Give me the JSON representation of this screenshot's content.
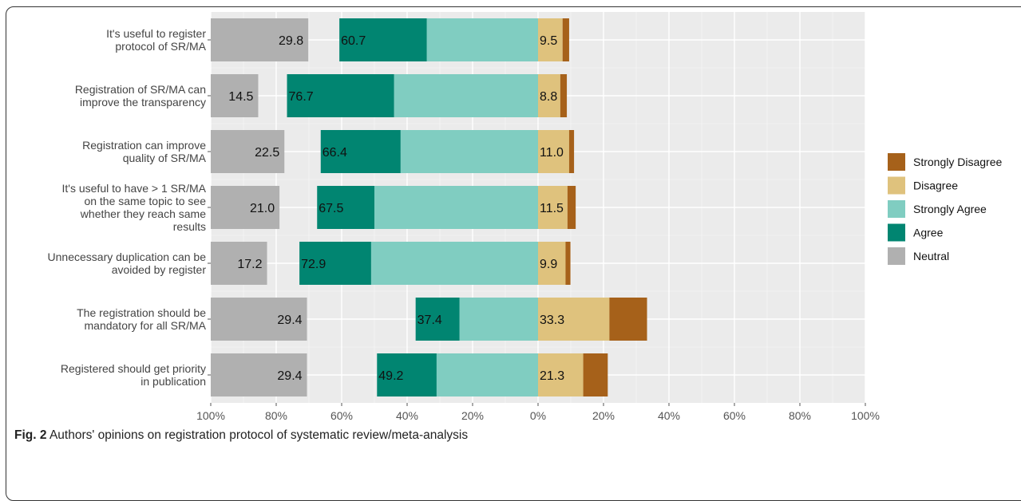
{
  "chart_data": {
    "type": "bar",
    "stacking": "diverging",
    "categories": [
      "It's useful to register protocol of SR/MA",
      "Registration of SR/MA can improve the transparency",
      "Registration can improve quality of SR/MA",
      "It's useful to have > 1 SR/MA on the same topic to see whether they reach same results",
      "Unnecessary duplication can be avoided by register",
      "The registration should be mandatory for all SR/MA",
      "Registered should get priority in publication"
    ],
    "category_lines": [
      [
        "It's useful to register",
        "protocol of SR/MA"
      ],
      [
        "Registration of SR/MA can",
        "improve the transparency"
      ],
      [
        "Registration can improve",
        "quality of SR/MA"
      ],
      [
        "It's useful to have > 1 SR/MA",
        "on the same topic to see",
        "whether they reach same",
        "results"
      ],
      [
        "Unnecessary duplication can be",
        "avoided by register"
      ],
      [
        "The registration should be",
        "mandatory for all SR/MA"
      ],
      [
        "Registered should get priority",
        "in publication"
      ]
    ],
    "series": [
      {
        "name": "Strongly Disagree",
        "color": "#A6611A",
        "values": [
          2.0,
          2.0,
          1.5,
          2.5,
          1.5,
          11.5,
          7.5
        ]
      },
      {
        "name": "Disagree",
        "color": "#DFC27D",
        "values": [
          7.5,
          6.8,
          9.5,
          9.0,
          8.4,
          21.8,
          13.8
        ]
      },
      {
        "name": "Strongly Agree",
        "color": "#80CDC1",
        "values": [
          34.0,
          44.0,
          42.0,
          50.0,
          51.0,
          24.0,
          31.0
        ]
      },
      {
        "name": "Agree",
        "color": "#018571",
        "values": [
          26.7,
          32.7,
          24.4,
          17.5,
          21.9,
          13.4,
          18.2
        ]
      },
      {
        "name": "Neutral",
        "color": "#B0B0B0",
        "values": [
          29.8,
          14.5,
          22.5,
          21.0,
          17.2,
          29.4,
          29.4
        ]
      }
    ],
    "data_labels": {
      "neutral": [
        "29.8",
        "14.5",
        "22.5",
        "21.0",
        "17.2",
        "29.4",
        "29.4"
      ],
      "agree_total": [
        "60.7",
        "76.7",
        "66.4",
        "67.5",
        "72.9",
        "37.4",
        "49.2"
      ],
      "disagree_total": [
        "9.5",
        "8.8",
        "11.0",
        "11.5",
        "9.9",
        "33.3",
        "21.3"
      ]
    },
    "x_ticks": [
      "100%",
      "80%",
      "60%",
      "40%",
      "20%",
      "0%",
      "20%",
      "40%",
      "60%",
      "80%",
      "100%"
    ],
    "xlim": [
      -100,
      100
    ],
    "xlabel": "",
    "ylabel": "",
    "legend": {
      "placement": "right",
      "entries": [
        "Strongly Disagree",
        "Disagree",
        "Strongly Agree",
        "Agree",
        "Neutral"
      ]
    },
    "grid": true,
    "background": "#EBEBEB"
  },
  "caption": {
    "label": "Fig. 2",
    "text": "Authors' opinions on registration protocol of systematic review/meta-analysis"
  }
}
